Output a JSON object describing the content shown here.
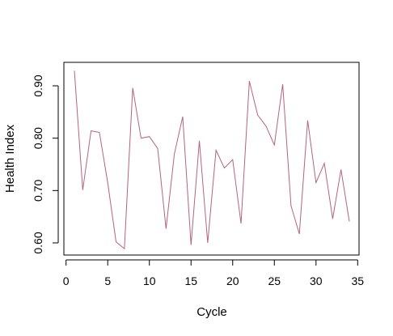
{
  "chart_data": {
    "type": "line",
    "title": "",
    "xlabel": "Cycle",
    "ylabel": "Health Index",
    "xlim": [
      0,
      35
    ],
    "ylim": [
      0.58,
      0.935
    ],
    "x_ticks": [
      0,
      5,
      10,
      15,
      20,
      25,
      30,
      35
    ],
    "y_ticks": [
      0.6,
      0.7,
      0.8,
      0.9
    ],
    "x_tick_labels": [
      "0",
      "5",
      "10",
      "15",
      "20",
      "25",
      "30",
      "35"
    ],
    "y_tick_labels": [
      "0.60",
      "0.70",
      "0.80",
      "0.90"
    ],
    "grid": false,
    "legend": "none",
    "series": [
      {
        "color": "#B5637E",
        "x": [
          1,
          2,
          3,
          4,
          5,
          6,
          7,
          8,
          9,
          10,
          11,
          12,
          13,
          14,
          15,
          16,
          17,
          18,
          19,
          20,
          21,
          22,
          23,
          24,
          25,
          26,
          27,
          28,
          29,
          30,
          31,
          32,
          33,
          34
        ],
        "values": [
          0.929,
          0.701,
          0.814,
          0.811,
          0.715,
          0.602,
          0.589,
          0.896,
          0.8,
          0.803,
          0.78,
          0.627,
          0.77,
          0.841,
          0.596,
          0.795,
          0.6,
          0.777,
          0.743,
          0.759,
          0.637,
          0.909,
          0.844,
          0.823,
          0.787,
          0.903,
          0.671,
          0.617,
          0.834,
          0.715,
          0.752,
          0.646,
          0.74,
          0.641
        ]
      }
    ]
  }
}
